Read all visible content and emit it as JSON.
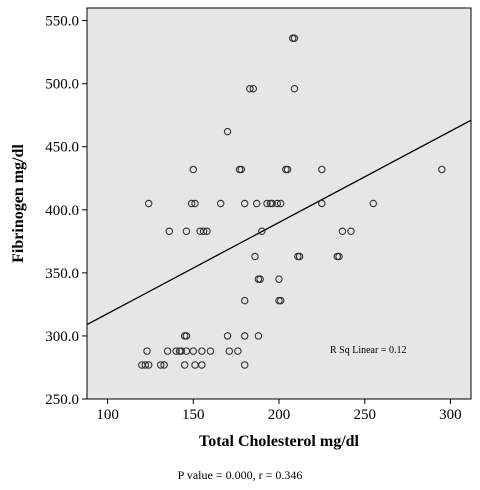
{
  "chart_data": {
    "type": "scatter",
    "xlabel": "Total Cholesterol mg/dl",
    "ylabel": "Fibrinogen mg/dl",
    "xlim": [
      88,
      312
    ],
    "ylim": [
      250,
      560
    ],
    "xticks": [
      "100",
      "150",
      "200",
      "250",
      "300"
    ],
    "yticks": [
      "250.0",
      "300.0",
      "350.0",
      "400.0",
      "450.0",
      "500.0",
      "550.0"
    ],
    "grid": false,
    "legend": "none",
    "background_color": "#e6e6e6",
    "marker_color": "#333333",
    "fit_line": {
      "type": "linear",
      "label": "R Sq Linear = 0.12",
      "x": [
        88,
        312
      ],
      "y": [
        309,
        471
      ]
    },
    "points": [
      {
        "x": 120,
        "y": 277
      },
      {
        "x": 122,
        "y": 277
      },
      {
        "x": 124,
        "y": 277
      },
      {
        "x": 123,
        "y": 288
      },
      {
        "x": 124,
        "y": 405
      },
      {
        "x": 131,
        "y": 277
      },
      {
        "x": 133,
        "y": 277
      },
      {
        "x": 135,
        "y": 288
      },
      {
        "x": 136,
        "y": 383
      },
      {
        "x": 140,
        "y": 288
      },
      {
        "x": 142,
        "y": 288
      },
      {
        "x": 143,
        "y": 288
      },
      {
        "x": 145,
        "y": 300
      },
      {
        "x": 146,
        "y": 300
      },
      {
        "x": 145,
        "y": 277
      },
      {
        "x": 146,
        "y": 288
      },
      {
        "x": 146,
        "y": 383
      },
      {
        "x": 150,
        "y": 432
      },
      {
        "x": 149,
        "y": 405
      },
      {
        "x": 151,
        "y": 405
      },
      {
        "x": 150,
        "y": 288
      },
      {
        "x": 151,
        "y": 277
      },
      {
        "x": 154,
        "y": 383
      },
      {
        "x": 156,
        "y": 383
      },
      {
        "x": 155,
        "y": 288
      },
      {
        "x": 155,
        "y": 277
      },
      {
        "x": 158,
        "y": 383
      },
      {
        "x": 160,
        "y": 288
      },
      {
        "x": 166,
        "y": 405
      },
      {
        "x": 170,
        "y": 462
      },
      {
        "x": 170,
        "y": 300
      },
      {
        "x": 171,
        "y": 288
      },
      {
        "x": 176,
        "y": 288
      },
      {
        "x": 177,
        "y": 432
      },
      {
        "x": 178,
        "y": 432
      },
      {
        "x": 180,
        "y": 405
      },
      {
        "x": 180,
        "y": 328
      },
      {
        "x": 180,
        "y": 300
      },
      {
        "x": 180,
        "y": 277
      },
      {
        "x": 183,
        "y": 496
      },
      {
        "x": 185,
        "y": 496
      },
      {
        "x": 186,
        "y": 363
      },
      {
        "x": 187,
        "y": 405
      },
      {
        "x": 188,
        "y": 300
      },
      {
        "x": 188,
        "y": 345
      },
      {
        "x": 189,
        "y": 345
      },
      {
        "x": 190,
        "y": 383
      },
      {
        "x": 193,
        "y": 405
      },
      {
        "x": 195,
        "y": 405
      },
      {
        "x": 196,
        "y": 405
      },
      {
        "x": 199,
        "y": 405
      },
      {
        "x": 200,
        "y": 345
      },
      {
        "x": 200,
        "y": 328
      },
      {
        "x": 201,
        "y": 328
      },
      {
        "x": 201,
        "y": 405
      },
      {
        "x": 204,
        "y": 432
      },
      {
        "x": 205,
        "y": 432
      },
      {
        "x": 208,
        "y": 536
      },
      {
        "x": 209,
        "y": 536
      },
      {
        "x": 209,
        "y": 496
      },
      {
        "x": 211,
        "y": 363
      },
      {
        "x": 212,
        "y": 363
      },
      {
        "x": 225,
        "y": 432
      },
      {
        "x": 225,
        "y": 405
      },
      {
        "x": 234,
        "y": 363
      },
      {
        "x": 235,
        "y": 363
      },
      {
        "x": 237,
        "y": 383
      },
      {
        "x": 242,
        "y": 383
      },
      {
        "x": 255,
        "y": 405
      },
      {
        "x": 295,
        "y": 432
      }
    ]
  },
  "caption": "P value = 0.000, r = 0.346"
}
